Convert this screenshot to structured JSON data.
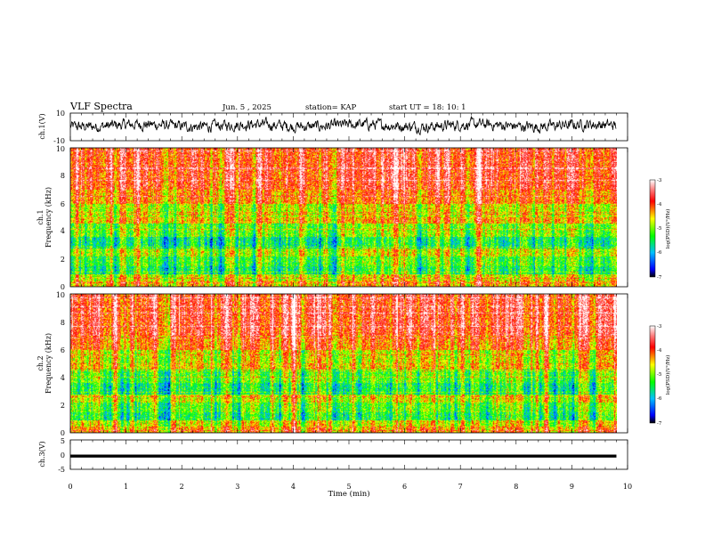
{
  "header": {
    "title": "VLF Spectra",
    "date": "Jun. 5 , 2025",
    "station": "station= KAP",
    "start": "start UT =  18: 10: 1"
  },
  "chart_data": [
    {
      "type": "line",
      "name": "waveform-ch1",
      "ylabel": "ch.1(V)",
      "ylim": [
        -10,
        10
      ],
      "yticks": [
        "10",
        "-10"
      ],
      "xlim": [
        0,
        10
      ],
      "data_extent_min": 9.8,
      "color": "#000000"
    },
    {
      "type": "heatmap",
      "name": "spectrogram-ch1",
      "ylabel": "ch.1",
      "ylabel2": "Frequency (kHz)",
      "ylim": [
        0,
        10
      ],
      "yticks": [
        "0",
        "2",
        "4",
        "6",
        "8",
        "10"
      ],
      "xlim": [
        0,
        10
      ],
      "colorbar": {
        "range": [
          -7,
          -3
        ],
        "ticks": [
          "-3",
          "-4",
          "-5",
          "-6",
          "-7"
        ],
        "label": "log(PSD)(V²/Hz)"
      }
    },
    {
      "type": "heatmap",
      "name": "spectrogram-ch2",
      "ylabel": "ch.2",
      "ylabel2": "Frequency (kHz)",
      "ylim": [
        0,
        10
      ],
      "yticks": [
        "0",
        "2",
        "4",
        "6",
        "8",
        "10"
      ],
      "xlim": [
        0,
        10
      ],
      "colorbar": {
        "range": [
          -7,
          -3
        ],
        "ticks": [
          "-3",
          "-4",
          "-5",
          "-6",
          "-7"
        ],
        "label": "log(PSD)(V²/Hz)"
      }
    },
    {
      "type": "line",
      "name": "waveform-ch3",
      "ylabel": "ch.3(V)",
      "ylim": [
        -5,
        5
      ],
      "yticks": [
        "5",
        "0",
        "-5"
      ],
      "xlim": [
        0,
        10
      ],
      "xticks": [
        "0",
        "1",
        "2",
        "3",
        "4",
        "5",
        "6",
        "7",
        "8",
        "9",
        "10"
      ],
      "xlabel": "Time (min)",
      "data_extent_min": 9.8,
      "band": [
        -1,
        0
      ],
      "color": "#000000"
    }
  ]
}
